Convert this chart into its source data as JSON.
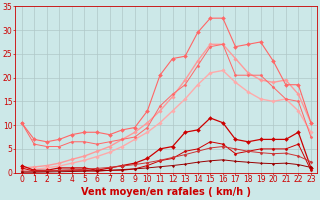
{
  "xlabel": "Vent moyen/en rafales ( km/h )",
  "background_color": "#cce8e8",
  "grid_color": "#b0c8c8",
  "x": [
    0,
    1,
    2,
    3,
    4,
    5,
    6,
    7,
    8,
    9,
    10,
    11,
    12,
    13,
    14,
    15,
    16,
    17,
    18,
    19,
    20,
    21,
    22,
    23
  ],
  "series": [
    {
      "name": "smooth_top",
      "color": "#ff9999",
      "linewidth": 1.0,
      "marker": "D",
      "markersize": 1.8,
      "smooth": true,
      "values": [
        1.0,
        1.2,
        1.5,
        2.0,
        2.8,
        3.5,
        4.5,
        5.5,
        7.0,
        8.5,
        10.5,
        13.0,
        16.0,
        19.5,
        23.5,
        27.0,
        27.0,
        24.0,
        21.0,
        19.5,
        19.0,
        19.5,
        16.5,
        10.5
      ]
    },
    {
      "name": "smooth_mid",
      "color": "#ffaaaa",
      "linewidth": 1.0,
      "marker": "D",
      "markersize": 1.8,
      "smooth": true,
      "values": [
        0.5,
        0.7,
        1.0,
        1.4,
        2.0,
        2.6,
        3.4,
        4.3,
        5.5,
        7.0,
        8.5,
        10.5,
        13.0,
        15.5,
        18.5,
        21.0,
        21.5,
        19.0,
        17.0,
        15.5,
        15.0,
        15.5,
        13.0,
        8.5
      ]
    },
    {
      "name": "jagged_max_rafales",
      "color": "#ff6666",
      "linewidth": 0.8,
      "marker": "D",
      "markersize": 2.0,
      "smooth": false,
      "values": [
        10.5,
        7.0,
        6.5,
        7.0,
        8.0,
        8.5,
        8.5,
        8.0,
        9.0,
        9.5,
        13.0,
        20.5,
        24.0,
        24.5,
        29.5,
        32.5,
        32.5,
        26.5,
        27.0,
        27.5,
        23.5,
        18.5,
        18.5,
        10.5
      ]
    },
    {
      "name": "jagged_moy_rafales",
      "color": "#ff6666",
      "linewidth": 0.7,
      "marker": "D",
      "markersize": 1.5,
      "smooth": false,
      "values": [
        10.5,
        6.0,
        5.5,
        5.5,
        6.5,
        6.5,
        6.0,
        6.5,
        7.0,
        7.5,
        9.5,
        14.0,
        16.5,
        18.5,
        22.5,
        26.5,
        27.0,
        20.5,
        20.5,
        20.5,
        18.0,
        15.5,
        15.0,
        7.5
      ]
    },
    {
      "name": "jagged_max_vent",
      "color": "#cc0000",
      "linewidth": 0.9,
      "marker": "D",
      "markersize": 2.0,
      "smooth": false,
      "values": [
        1.5,
        0.5,
        0.5,
        1.0,
        1.0,
        1.0,
        0.5,
        1.0,
        1.5,
        2.0,
        3.0,
        5.0,
        5.5,
        8.5,
        9.0,
        11.5,
        10.5,
        7.0,
        6.5,
        7.0,
        7.0,
        7.0,
        8.5,
        1.0
      ]
    },
    {
      "name": "jagged_moy_vent",
      "color": "#cc0000",
      "linewidth": 0.7,
      "marker": "D",
      "markersize": 1.5,
      "smooth": false,
      "values": [
        1.0,
        0.3,
        0.3,
        0.5,
        0.5,
        0.5,
        0.3,
        0.5,
        0.5,
        0.8,
        1.5,
        2.5,
        3.0,
        4.5,
        5.0,
        6.5,
        6.0,
        4.0,
        4.5,
        5.0,
        5.0,
        5.0,
        6.0,
        0.5
      ]
    },
    {
      "name": "smooth_low1",
      "color": "#cc3333",
      "linewidth": 0.7,
      "marker": "D",
      "markersize": 1.5,
      "smooth": true,
      "values": [
        0.3,
        0.3,
        0.4,
        0.5,
        0.6,
        0.7,
        0.9,
        1.1,
        1.4,
        1.7,
        2.1,
        2.6,
        3.2,
        3.8,
        4.5,
        5.2,
        5.5,
        5.0,
        4.5,
        4.2,
        4.0,
        4.1,
        3.5,
        2.3
      ]
    },
    {
      "name": "smooth_low2",
      "color": "#990000",
      "linewidth": 0.7,
      "marker": "D",
      "markersize": 1.2,
      "smooth": true,
      "values": [
        0.1,
        0.1,
        0.15,
        0.2,
        0.25,
        0.3,
        0.4,
        0.5,
        0.65,
        0.8,
        1.0,
        1.25,
        1.5,
        1.8,
        2.2,
        2.5,
        2.7,
        2.4,
        2.2,
        2.0,
        1.9,
        2.0,
        1.7,
        1.1
      ]
    }
  ],
  "ylim": [
    0,
    35
  ],
  "yticks": [
    0,
    5,
    10,
    15,
    20,
    25,
    30,
    35
  ],
  "xticks": [
    0,
    1,
    2,
    3,
    4,
    5,
    6,
    7,
    8,
    9,
    10,
    11,
    12,
    13,
    14,
    15,
    16,
    17,
    18,
    19,
    20,
    21,
    22,
    23
  ],
  "tick_color": "#cc0000",
  "label_color": "#cc0000",
  "axis_fontsize": 7,
  "tick_fontsize": 5.5
}
